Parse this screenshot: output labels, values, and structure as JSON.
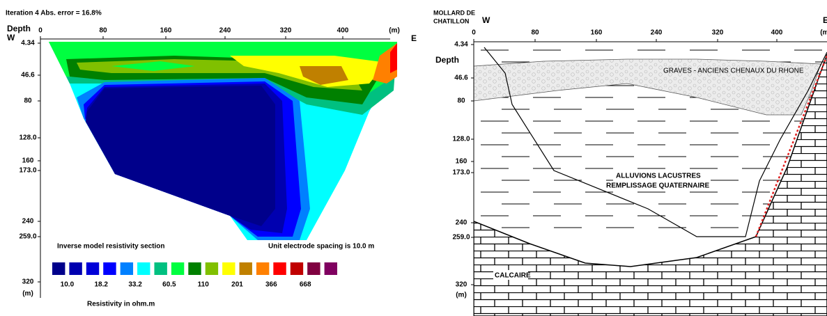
{
  "left_panel": {
    "title": "Iteration 4 Abs. error = 16.8%",
    "depth_label": "Depth",
    "west_label": "W",
    "east_label": "E",
    "x_ticks": [
      "0",
      "80",
      "160",
      "240",
      "320",
      "400",
      "(m)"
    ],
    "depth_ticks": [
      "4.34",
      "46.6",
      "80",
      "128.0",
      "160",
      "173.0",
      "240",
      "259.0",
      "320",
      "(m)"
    ],
    "section_caption": "Inverse model resistivity section",
    "spacing_note": "Unit electrode spacing is 10.0 m",
    "legend": {
      "colors": [
        "#00008b",
        "#0000b0",
        "#0000d8",
        "#0000ff",
        "#0080ff",
        "#00ffff",
        "#00c080",
        "#00ff40",
        "#008000",
        "#80c000",
        "#ffff00",
        "#c08000",
        "#ff8000",
        "#ff0000",
        "#c00000",
        "#800040",
        "#800060"
      ],
      "labels": [
        "10.0",
        "18.2",
        "33.2",
        "60.5",
        "110",
        "201",
        "366",
        "668"
      ],
      "title": "Resistivity in ohm.m"
    }
  },
  "right_panel": {
    "site_label": [
      "MOLLARD DE",
      "CHATILLON"
    ],
    "west_label": "W",
    "east_label": "E",
    "depth_label": "Depth",
    "x_ticks": [
      "0",
      "80",
      "160",
      "240",
      "320",
      "400",
      "(m)"
    ],
    "depth_ticks": [
      "4.34",
      "46.6",
      "80",
      "128.0",
      "160",
      "173.0",
      "240",
      "259.0",
      "320",
      "(m)"
    ],
    "units": {
      "gravel": "GRAVES - ANCIENS CHENAUX DU RHONE",
      "lacustrine": "ALLUVIONS LACUSTRES",
      "fill": "REMPLISSAGE QUATERNAIRE",
      "limestone": "CALCAIRE"
    }
  }
}
